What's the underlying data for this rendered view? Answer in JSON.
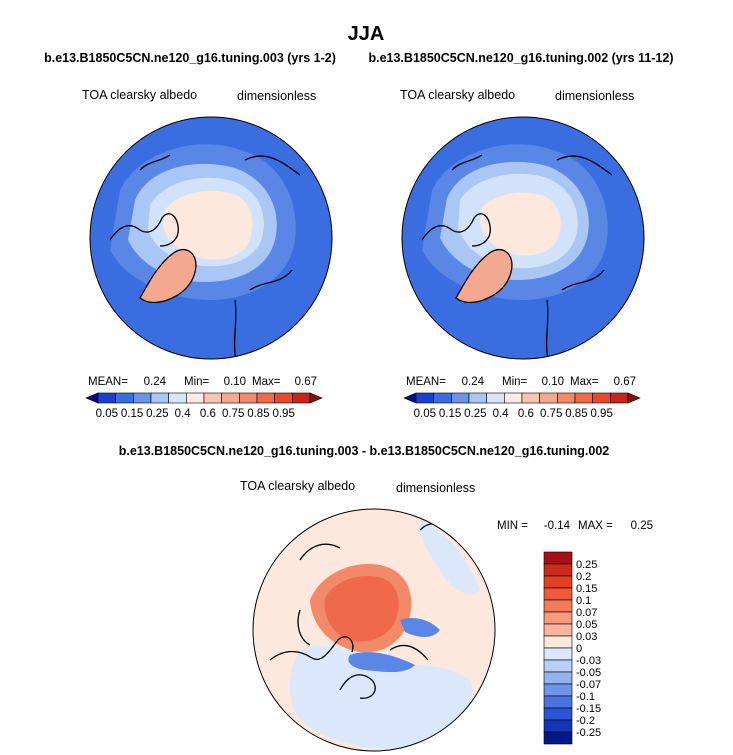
{
  "figure": {
    "title": "JJA",
    "panel_left_title": "b.e13.B1850C5CN.ne120_g16.tuning.003 (yrs 1-2)",
    "panel_right_title": "b.e13.B1850C5CN.ne120_g16.tuning.002 (yrs 11-12)",
    "diff_title": "b.e13.B1850C5CN.ne120_g16.tuning.003 - b.e13.B1850C5CN.ne120_g16.tuning.002"
  },
  "colors": {
    "ocean": "#3a6de0",
    "ocean_light": "#5a86e6",
    "lightblue": "#a9c6f5",
    "paleblue": "#d2e2fa",
    "ice": "#fde8de",
    "salmon": "#f5a890",
    "land_coast": "#000000",
    "diff_base": "#fde8de",
    "diff_red": "#ee6a4a",
    "diff_red2": "#f28a6a",
    "diff_blue": "#5a86e6",
    "diff_pale": "#dbe8fb"
  },
  "chart_data": [
    {
      "type": "heatmap",
      "panel": "left",
      "title": "b.e13.B1850C5CN.ne120_g16.tuning.003 (yrs 1-2)",
      "variable": "TOA clearsky albedo",
      "units": "dimensionless",
      "stats": {
        "mean_label": "MEAN=",
        "mean": "0.24",
        "min_label": "Min=",
        "min": "0.10",
        "max_label": "Max=",
        "max": "0.67"
      },
      "colorbar": {
        "levels": [
          "0.05",
          "0.15",
          "0.25",
          "0.4",
          "0.6",
          "0.75",
          "0.85",
          "0.95"
        ],
        "colors": [
          "#08088a",
          "#1d3fcf",
          "#3a6de0",
          "#6b93ea",
          "#a9c6f5",
          "#d7e5fb",
          "#fdeae2",
          "#f9c5b0",
          "#f5a890",
          "#f28a6a",
          "#ee6a4a",
          "#e64a2e",
          "#c9241a",
          "#8f0c0c"
        ]
      }
    },
    {
      "type": "heatmap",
      "panel": "right",
      "title": "b.e13.B1850C5CN.ne120_g16.tuning.002 (yrs 11-12)",
      "variable": "TOA clearsky albedo",
      "units": "dimensionless",
      "stats": {
        "mean_label": "MEAN=",
        "mean": "0.24",
        "min_label": "Min=",
        "min": "0.10",
        "max_label": "Max=",
        "max": "0.67"
      },
      "colorbar": {
        "levels": [
          "0.05",
          "0.15",
          "0.25",
          "0.4",
          "0.6",
          "0.75",
          "0.85",
          "0.95"
        ],
        "colors": [
          "#08088a",
          "#1d3fcf",
          "#3a6de0",
          "#6b93ea",
          "#a9c6f5",
          "#d7e5fb",
          "#fdeae2",
          "#f9c5b0",
          "#f5a890",
          "#f28a6a",
          "#ee6a4a",
          "#e64a2e",
          "#c9241a",
          "#8f0c0c"
        ]
      }
    },
    {
      "type": "heatmap",
      "panel": "difference",
      "title": "b.e13.B1850C5CN.ne120_g16.tuning.003 - b.e13.B1850C5CN.ne120_g16.tuning.002",
      "variable": "TOA clearsky albedo",
      "units": "dimensionless",
      "stats": {
        "min_label": "MIN =",
        "min": "-0.14",
        "max_label": "MAX =",
        "max": "0.25"
      },
      "colorbar": {
        "levels": [
          "0.25",
          "0.2",
          "0.15",
          "0.1",
          "0.07",
          "0.05",
          "0.03",
          "0",
          "-0.03",
          "-0.05",
          "-0.07",
          "-0.1",
          "-0.15",
          "-0.2",
          "-0.25"
        ],
        "colors": [
          "#a50f15",
          "#cb2a1c",
          "#e23f24",
          "#f0583a",
          "#f57a5a",
          "#f89a7c",
          "#fab59b",
          "#fde8de",
          "#dbe8fb",
          "#b8cff6",
          "#93b3ef",
          "#6f95e8",
          "#4a75e0",
          "#2a55d4",
          "#1336b8",
          "#001a8a"
        ]
      }
    }
  ]
}
